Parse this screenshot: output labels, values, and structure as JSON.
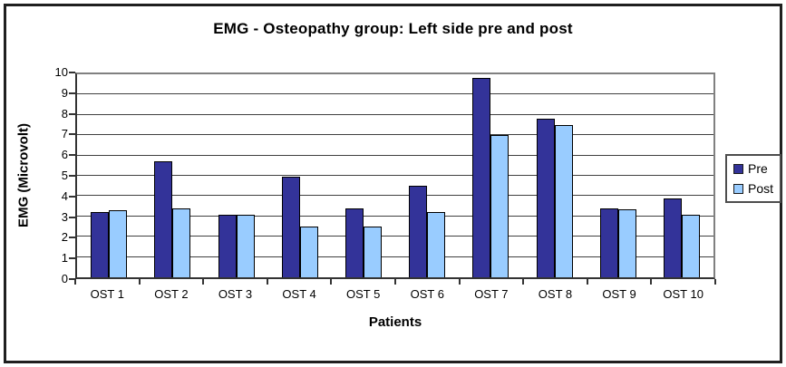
{
  "chart_data": {
    "type": "bar",
    "title": "EMG - Osteopathy group: Left side pre and post",
    "xlabel": "Patients",
    "ylabel": "EMG (Microvolt)",
    "categories": [
      "OST 1",
      "OST 2",
      "OST 3",
      "OST 4",
      "OST 5",
      "OST 6",
      "OST 7",
      "OST 8",
      "OST 9",
      "OST 10"
    ],
    "series": [
      {
        "name": "Pre",
        "color": "#333399",
        "values": [
          3.2,
          5.7,
          3.1,
          4.95,
          3.4,
          4.5,
          9.8,
          7.8,
          3.4,
          3.9
        ]
      },
      {
        "name": "Post",
        "color": "#99ccff",
        "values": [
          3.3,
          3.4,
          3.1,
          2.5,
          2.5,
          3.2,
          7.0,
          7.5,
          3.35,
          3.1
        ]
      }
    ],
    "ylim": [
      0,
      10
    ],
    "yticks": [
      0,
      1,
      2,
      3,
      4,
      5,
      6,
      7,
      8,
      9,
      10
    ],
    "grid": true,
    "legend_position": "right",
    "styles": {
      "bar_border": "#000000",
      "gridline": "#404040",
      "plot_border": "#808080",
      "axis": "#333333",
      "frame_border": "#1f1f1f",
      "background": "#ffffff",
      "text": "#000000"
    }
  }
}
